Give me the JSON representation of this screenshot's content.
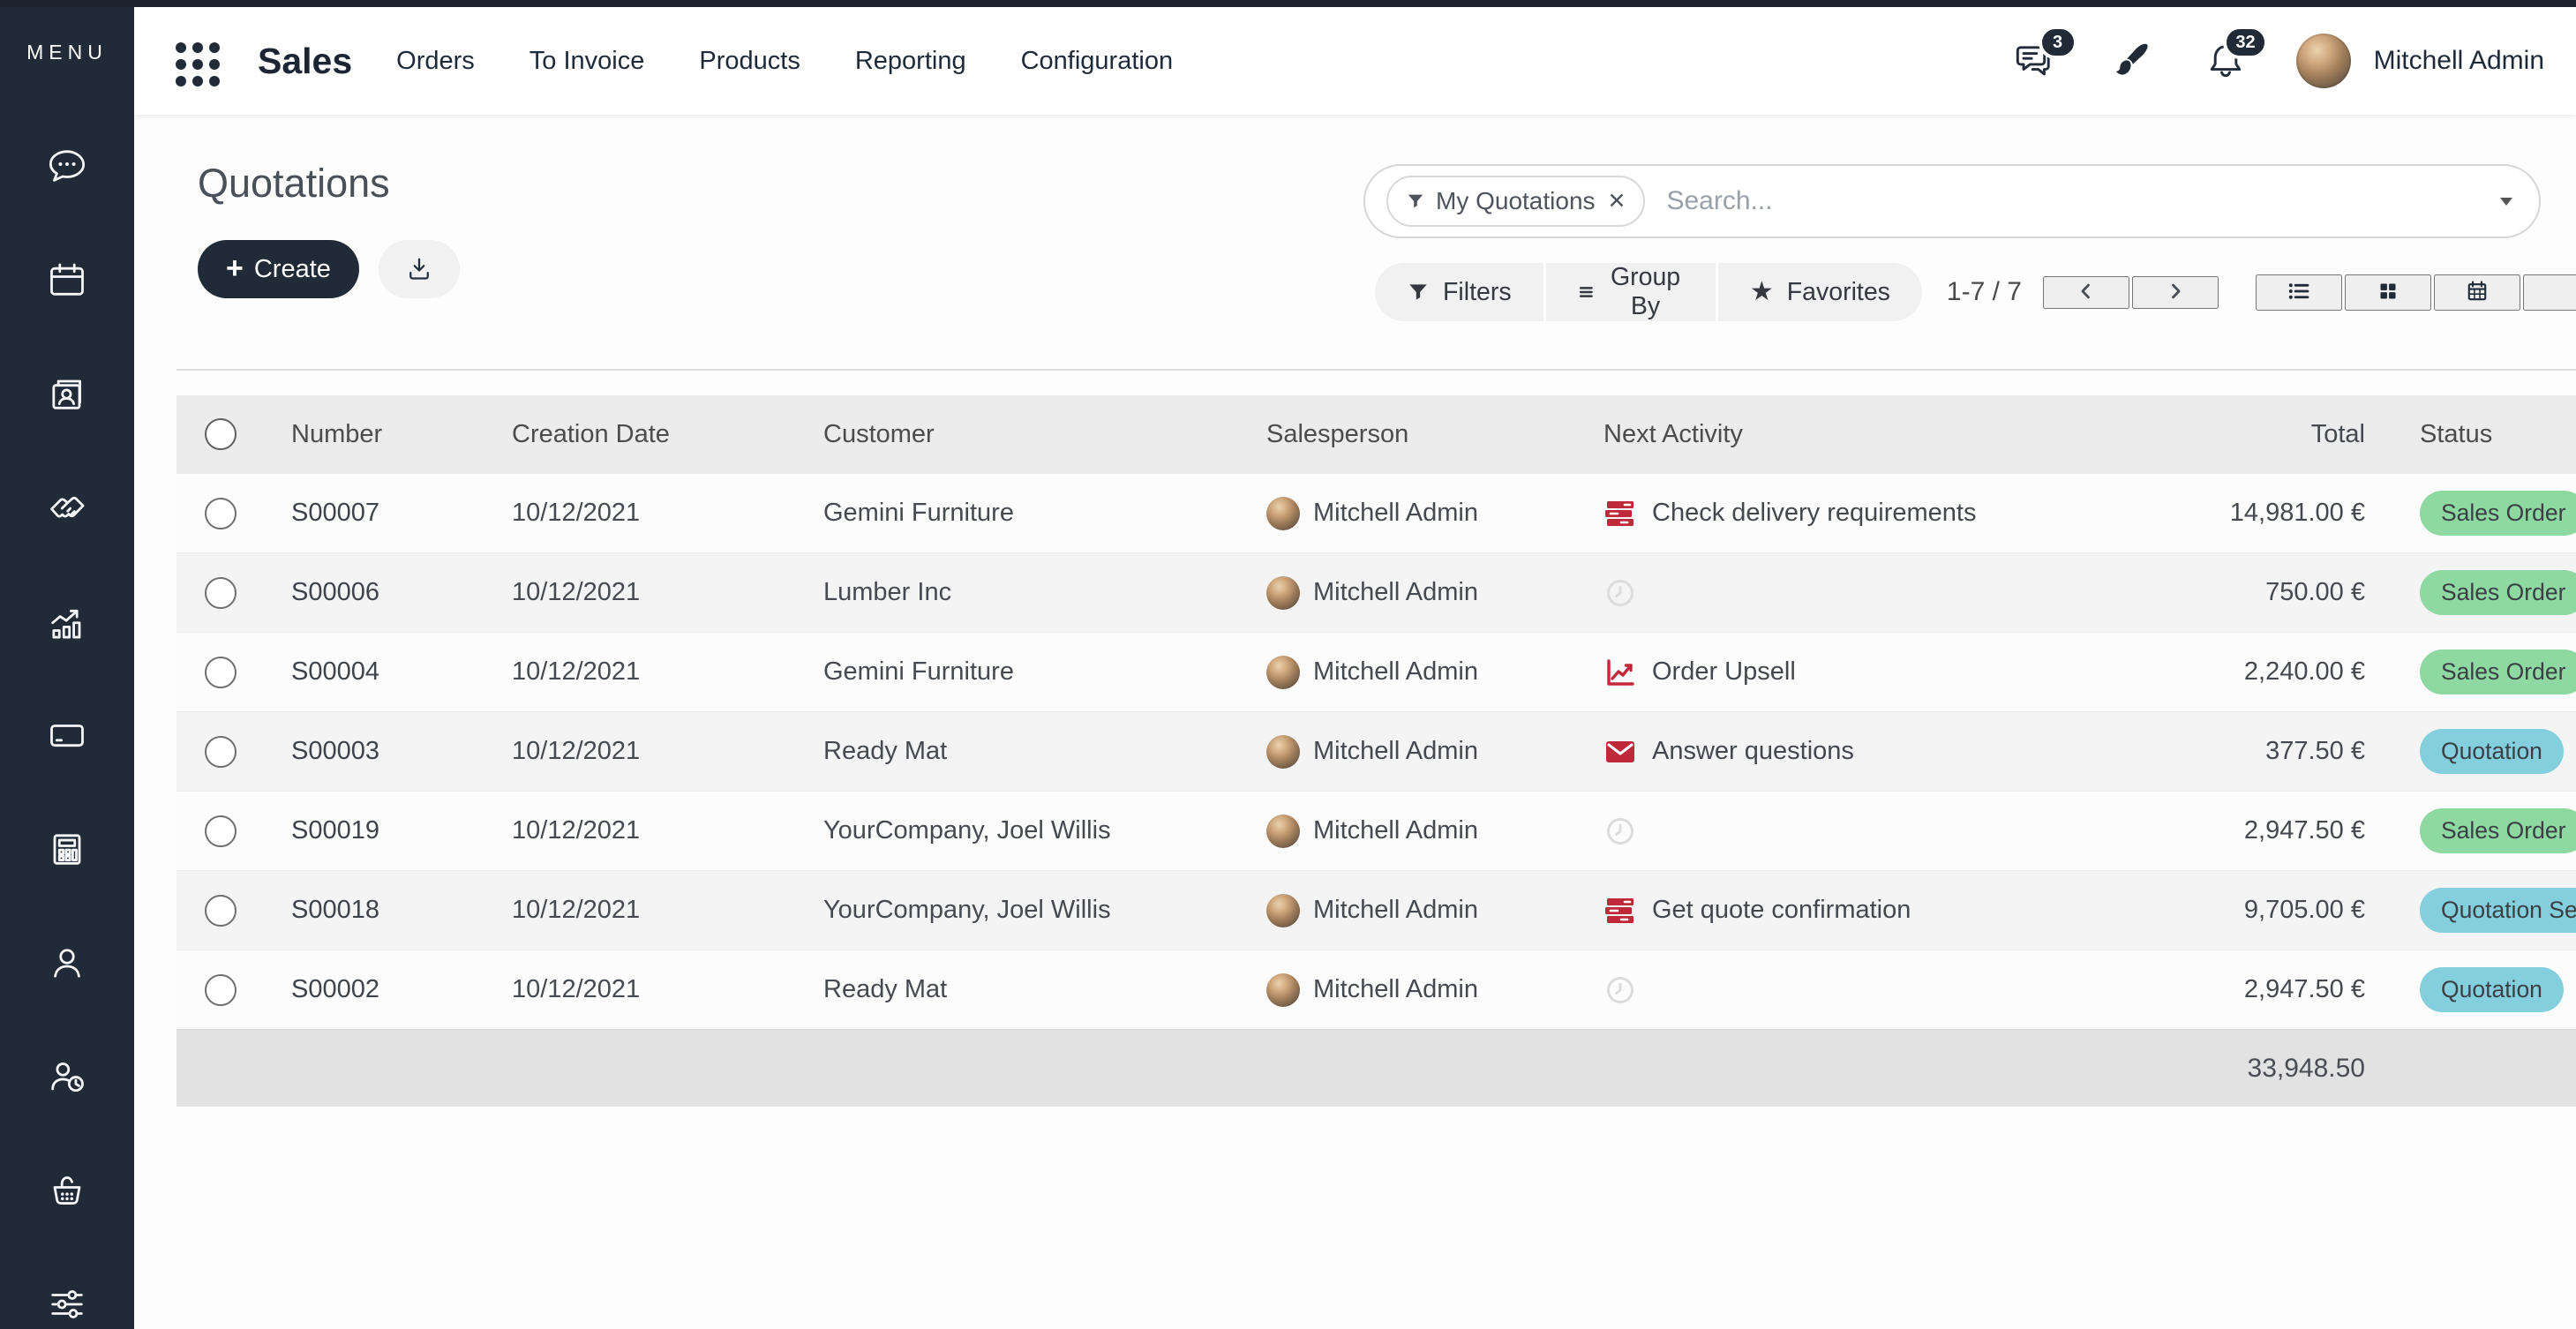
{
  "window": {
    "top_strip_color": "#1b222e"
  },
  "sidebar": {
    "menu_label": "MENU",
    "icons": [
      "discuss",
      "calendar",
      "contacts",
      "crm",
      "sales",
      "invoicing",
      "accounting",
      "employees",
      "attendance",
      "point-of-sale",
      "settings"
    ]
  },
  "navbar": {
    "app_name": "Sales",
    "menu_items": [
      "Orders",
      "To Invoice",
      "Products",
      "Reporting",
      "Configuration"
    ],
    "messages_count": "3",
    "notifications_count": "32",
    "user_name": "Mitchell Admin"
  },
  "page": {
    "title": "Quotations",
    "create_label": "Create",
    "search": {
      "active_filter": "My Quotations",
      "placeholder": "Search..."
    },
    "toolbar": {
      "filters_label": "Filters",
      "group_by_label": "Group By",
      "favorites_label": "Favorites",
      "pager": "1-7 / 7",
      "views": [
        "list",
        "kanban",
        "calendar"
      ]
    }
  },
  "table": {
    "headers": [
      "Number",
      "Creation Date",
      "Customer",
      "Salesperson",
      "Next Activity",
      "Total",
      "Status"
    ],
    "rows": [
      {
        "number": "S00007",
        "date": "10/12/2021",
        "customer": "Gemini Furniture",
        "salesperson": "Mitchell Admin",
        "activity": {
          "icon": "activity-list-icon",
          "label": "Check delivery requirements"
        },
        "total": "14,981.00 €",
        "status": "Sales Order",
        "status_type": "success"
      },
      {
        "number": "S00006",
        "date": "10/12/2021",
        "customer": "Lumber Inc",
        "salesperson": "Mitchell Admin",
        "activity": {
          "icon": "activity-clock-icon",
          "label": ""
        },
        "total": "750.00 €",
        "status": "Sales Order",
        "status_type": "success"
      },
      {
        "number": "S00004",
        "date": "10/12/2021",
        "customer": "Gemini Furniture",
        "salesperson": "Mitchell Admin",
        "activity": {
          "icon": "activity-chart-icon",
          "label": "Order Upsell"
        },
        "total": "2,240.00 €",
        "status": "Sales Order",
        "status_type": "success"
      },
      {
        "number": "S00003",
        "date": "10/12/2021",
        "customer": "Ready Mat",
        "salesperson": "Mitchell Admin",
        "activity": {
          "icon": "activity-mail-icon",
          "label": "Answer questions"
        },
        "total": "377.50 €",
        "status": "Quotation",
        "status_type": "info"
      },
      {
        "number": "S00019",
        "date": "10/12/2021",
        "customer": "YourCompany, Joel Willis",
        "salesperson": "Mitchell Admin",
        "activity": {
          "icon": "activity-clock-icon",
          "label": ""
        },
        "total": "2,947.50 €",
        "status": "Sales Order",
        "status_type": "success"
      },
      {
        "number": "S00018",
        "date": "10/12/2021",
        "customer": "YourCompany, Joel Willis",
        "salesperson": "Mitchell Admin",
        "activity": {
          "icon": "activity-list-icon",
          "label": "Get quote confirmation"
        },
        "total": "9,705.00 €",
        "status": "Quotation Sent",
        "status_type": "info"
      },
      {
        "number": "S00002",
        "date": "10/12/2021",
        "customer": "Ready Mat",
        "salesperson": "Mitchell Admin",
        "activity": {
          "icon": "activity-clock-icon",
          "label": ""
        },
        "total": "2,947.50 €",
        "status": "Quotation",
        "status_type": "info"
      }
    ],
    "footer_total": "33,948.50"
  },
  "colors": {
    "sidebar": "#212b38",
    "accent": "#212b38",
    "badge_success": "#8ed8a2",
    "badge_info": "#83cfdd",
    "activity_red": "#c0293a"
  }
}
